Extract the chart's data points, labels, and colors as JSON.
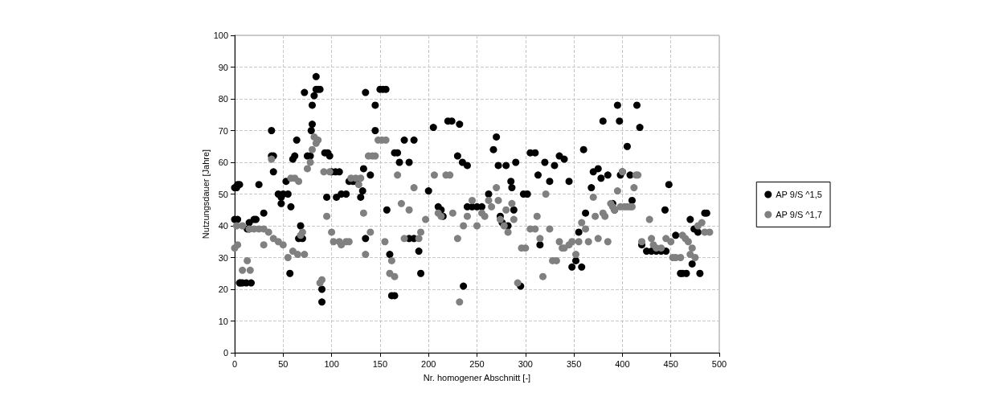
{
  "chart_data": {
    "type": "scatter",
    "xlabel": "Nr. homogener Abschnitt [-]",
    "ylabel": "Nutzungsdauer [Jahre]",
    "xlim": [
      0,
      500
    ],
    "xticks": [
      0,
      50,
      100,
      150,
      200,
      250,
      300,
      350,
      400,
      450,
      500
    ],
    "ylim": [
      0,
      100
    ],
    "yticks": [
      0,
      10,
      20,
      30,
      40,
      50,
      60,
      70,
      80,
      90,
      100
    ],
    "grid": true,
    "legend": "right",
    "marker": "circle",
    "series": [
      {
        "name": "AP 9/S ^1,5",
        "color": "#000000",
        "x": [
          0,
          2,
          3,
          5,
          0,
          3,
          6,
          5,
          8,
          12,
          15,
          17,
          13,
          15,
          20,
          22,
          25,
          30,
          38,
          38,
          40,
          40,
          45,
          48,
          50,
          53,
          55,
          48,
          57,
          58,
          60,
          62,
          64,
          66,
          68,
          70,
          72,
          75,
          78,
          80,
          79,
          80,
          82,
          84,
          84,
          86,
          88,
          90,
          90,
          93,
          96,
          95,
          98,
          100,
          104,
          108,
          105,
          110,
          115,
          118,
          122,
          125,
          130,
          132,
          133,
          135,
          135,
          140,
          145,
          145,
          150,
          153,
          156,
          157,
          160,
          162,
          165,
          165,
          168,
          170,
          175,
          180,
          185,
          180,
          185,
          190,
          192,
          200,
          205,
          210,
          213,
          215,
          220,
          224,
          230,
          232,
          235,
          236,
          240,
          240,
          245,
          250,
          255,
          262,
          267,
          270,
          272,
          274,
          276,
          280,
          282,
          285,
          286,
          288,
          290,
          295,
          298,
          302,
          305,
          310,
          313,
          315,
          320,
          325,
          330,
          335,
          340,
          345,
          348,
          352,
          355,
          358,
          360,
          362,
          368,
          370,
          375,
          378,
          380,
          385,
          390,
          392,
          395,
          397,
          398,
          400,
          405,
          408,
          410,
          415,
          418,
          420,
          425,
          430,
          435,
          440,
          444,
          445,
          448,
          455,
          460,
          462,
          466,
          470,
          472,
          474,
          478,
          480,
          485,
          487
        ],
        "values": [
          52,
          52,
          53,
          53,
          42,
          42,
          22,
          22,
          22,
          22,
          41,
          22,
          39,
          39,
          42,
          42,
          53,
          44,
          70,
          62,
          62,
          57,
          50,
          49,
          50,
          54,
          50,
          47,
          25,
          46,
          61,
          62,
          67,
          36,
          40,
          36,
          82,
          62,
          62,
          72,
          70,
          78,
          81,
          87,
          83,
          83,
          83,
          16,
          20,
          63,
          63,
          49,
          62,
          57,
          57,
          57,
          49,
          50,
          50,
          54,
          54,
          54,
          49,
          51,
          58,
          82,
          36,
          56,
          70,
          78,
          83,
          83,
          83,
          45,
          31,
          18,
          18,
          63,
          63,
          60,
          67,
          60,
          67,
          36,
          36,
          32,
          25,
          51,
          71,
          46,
          45,
          43,
          73,
          73,
          62,
          72,
          60,
          21,
          59,
          46,
          46,
          46,
          46,
          50,
          64,
          68,
          59,
          43,
          41,
          59,
          40,
          54,
          52,
          45,
          60,
          21,
          50,
          50,
          63,
          63,
          56,
          34,
          60,
          54,
          59,
          62,
          61,
          54,
          27,
          29,
          38,
          27,
          64,
          44,
          52,
          57,
          58,
          55,
          73,
          56,
          47,
          45,
          78,
          73,
          56,
          57,
          65,
          56,
          48,
          78,
          71,
          34,
          32,
          32,
          32,
          32,
          45,
          32,
          53,
          37,
          25,
          25,
          25,
          42,
          28,
          39,
          38,
          25,
          44,
          44
        ]
      },
      {
        "name": "AP 9/S ^1,7",
        "color": "#808080",
        "x": [
          0,
          3,
          2,
          8,
          8,
          13,
          16,
          15,
          20,
          25,
          30,
          30,
          35,
          38,
          40,
          45,
          50,
          55,
          58,
          62,
          66,
          60,
          65,
          68,
          70,
          72,
          75,
          78,
          80,
          82,
          84,
          86,
          88,
          90,
          95,
          92,
          98,
          100,
          102,
          108,
          110,
          115,
          118,
          120,
          125,
          130,
          128,
          133,
          135,
          140,
          138,
          142,
          145,
          148,
          152,
          156,
          155,
          160,
          162,
          165,
          168,
          172,
          175,
          180,
          185,
          190,
          192,
          197,
          206,
          210,
          213,
          218,
          222,
          225,
          230,
          232,
          236,
          240,
          245,
          250,
          255,
          258,
          262,
          265,
          270,
          272,
          274,
          278,
          280,
          282,
          286,
          288,
          292,
          296,
          300,
          305,
          310,
          312,
          315,
          318,
          321,
          325,
          328,
          332,
          335,
          338,
          340,
          345,
          348,
          352,
          355,
          358,
          362,
          365,
          370,
          372,
          375,
          380,
          382,
          385,
          388,
          390,
          392,
          395,
          398,
          400,
          402,
          405,
          408,
          410,
          412,
          414,
          416,
          420,
          428,
          430,
          432,
          435,
          440,
          445,
          450,
          452,
          455,
          460,
          462,
          465,
          468,
          470,
          472,
          475,
          478,
          482,
          485,
          490
        ],
        "values": [
          33,
          34,
          40,
          40,
          26,
          29,
          26,
          39,
          39,
          39,
          39,
          34,
          38,
          61,
          36,
          35,
          34,
          30,
          55,
          55,
          54,
          32,
          31,
          37,
          38,
          31,
          58,
          60,
          64,
          68,
          66,
          67,
          22,
          23,
          43,
          57,
          57,
          38,
          35,
          35,
          34,
          35,
          35,
          55,
          55,
          55,
          53,
          44,
          31,
          38,
          62,
          62,
          62,
          67,
          67,
          67,
          35,
          25,
          29,
          24,
          56,
          47,
          36,
          45,
          52,
          36,
          38,
          42,
          56,
          44,
          43,
          56,
          56,
          44,
          36,
          16,
          40,
          43,
          48,
          40,
          44,
          43,
          48,
          46,
          52,
          48,
          42,
          40,
          45,
          38,
          47,
          42,
          22,
          33,
          33,
          39,
          39,
          43,
          36,
          24,
          50,
          39,
          29,
          29,
          35,
          33,
          33,
          34,
          35,
          31,
          35,
          41,
          39,
          35,
          49,
          43,
          36,
          44,
          43,
          35,
          47,
          46,
          45,
          51,
          46,
          57,
          46,
          46,
          46,
          46,
          52,
          56,
          56,
          35,
          42,
          36,
          34,
          33,
          33,
          36,
          35,
          30,
          30,
          30,
          37,
          36,
          35,
          31,
          33,
          30,
          40,
          41,
          38,
          38
        ]
      }
    ]
  }
}
